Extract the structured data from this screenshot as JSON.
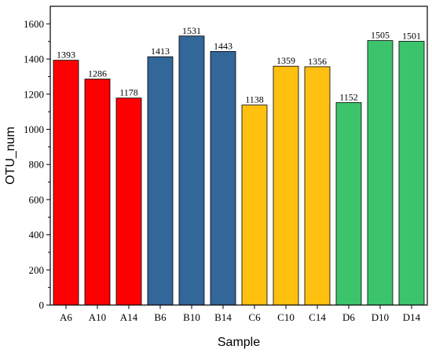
{
  "chart_data": {
    "type": "bar",
    "title": "",
    "xlabel": "Sample",
    "ylabel": "OTU_num",
    "ylim": [
      0,
      1700
    ],
    "yticks": [
      0,
      200,
      400,
      600,
      800,
      1000,
      1200,
      1400,
      1600
    ],
    "grid": false,
    "legend": "none",
    "categories": [
      "A6",
      "A10",
      "A14",
      "B6",
      "B10",
      "B14",
      "C6",
      "C10",
      "C14",
      "D6",
      "D10",
      "D14"
    ],
    "values": [
      1393,
      1286,
      1178,
      1413,
      1531,
      1443,
      1138,
      1359,
      1356,
      1152,
      1505,
      1501
    ],
    "groups": [
      {
        "name": "A",
        "color": "#ff0000"
      },
      {
        "name": "B",
        "color": "#336699"
      },
      {
        "name": "C",
        "color": "#ffc010"
      },
      {
        "name": "D",
        "color": "#3cc46c"
      }
    ],
    "bar_group_index": [
      0,
      0,
      0,
      1,
      1,
      1,
      2,
      2,
      2,
      3,
      3,
      3
    ]
  }
}
